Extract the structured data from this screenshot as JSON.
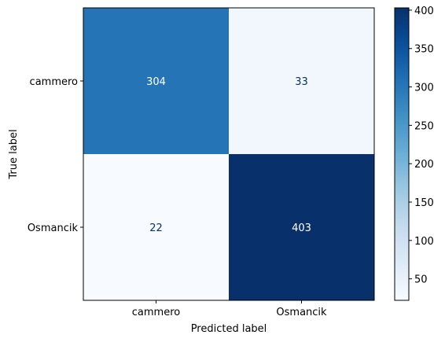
{
  "chart_data": {
    "type": "heatmap",
    "title": "",
    "xlabel": "Predicted label",
    "ylabel": "True label",
    "x_categories": [
      "cammero",
      "Osmancik"
    ],
    "y_categories": [
      "cammero",
      "Osmancik"
    ],
    "matrix": [
      [
        304,
        33
      ],
      [
        22,
        403
      ]
    ],
    "colormap": "Blues",
    "colorbar": {
      "vmin": 22,
      "vmax": 403,
      "ticks": [
        50,
        100,
        150,
        200,
        250,
        300,
        350,
        400
      ]
    },
    "grid": false,
    "text_colors": {
      "light": "#ffffff",
      "dark": "#08306b"
    }
  }
}
